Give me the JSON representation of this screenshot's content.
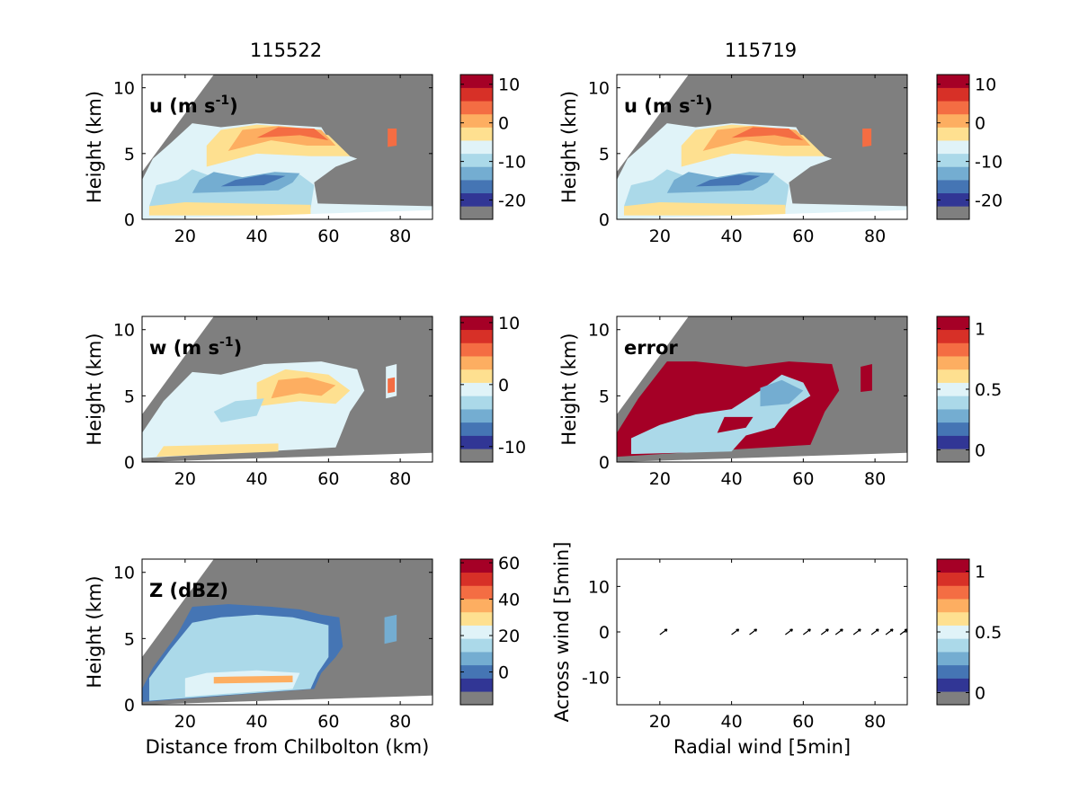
{
  "figure": {
    "column_titles": [
      "115522",
      "115719"
    ]
  },
  "colors": {
    "cmap": [
      "#7f7f7f",
      "#313695",
      "#4575b4",
      "#74add1",
      "#abd9e9",
      "#e0f3f8",
      "#fee090",
      "#fdae61",
      "#f46d43",
      "#d73027",
      "#a50026"
    ],
    "background": "#7f7f7f"
  },
  "chart_data": [
    {
      "type": "heatmap",
      "panel": "u-115522",
      "label_main": "u (m s",
      "label_sup": "-1",
      "label_end": ")",
      "xlabel": "",
      "ylabel": "Height (km)",
      "xlim": [
        8,
        89
      ],
      "ylim": [
        0,
        11
      ],
      "xticks": [
        "20",
        "40",
        "60",
        "80"
      ],
      "xtick_values": [
        20,
        40,
        60,
        80
      ],
      "yticks": [
        "0",
        "5",
        "10"
      ],
      "ytick_values": [
        0,
        5,
        10
      ],
      "colorbar": {
        "ticks": [
          "10",
          "0",
          "-10",
          "-20"
        ],
        "tick_values": [
          10,
          0,
          -10,
          -20
        ],
        "range": [
          -25,
          12.5
        ]
      }
    },
    {
      "type": "heatmap",
      "panel": "u-115719",
      "label_main": "u (m s",
      "label_sup": "-1",
      "label_end": ")",
      "xlabel": "",
      "ylabel": "Height (km)",
      "xlim": [
        8,
        89
      ],
      "ylim": [
        0,
        11
      ],
      "xticks": [
        "20",
        "40",
        "60",
        "80"
      ],
      "xtick_values": [
        20,
        40,
        60,
        80
      ],
      "yticks": [
        "0",
        "5",
        "10"
      ],
      "ytick_values": [
        0,
        5,
        10
      ],
      "colorbar": {
        "ticks": [
          "10",
          "0",
          "-10",
          "-20"
        ],
        "tick_values": [
          10,
          0,
          -10,
          -20
        ],
        "range": [
          -25,
          12.5
        ]
      }
    },
    {
      "type": "heatmap",
      "panel": "w-115522",
      "label_main": "w (m s",
      "label_sup": "-1",
      "label_end": ")",
      "xlabel": "",
      "ylabel": "Height (km)",
      "xlim": [
        8,
        89
      ],
      "ylim": [
        0,
        11
      ],
      "xticks": [
        "20",
        "40",
        "60",
        "80"
      ],
      "xtick_values": [
        20,
        40,
        60,
        80
      ],
      "yticks": [
        "0",
        "5",
        "10"
      ],
      "ytick_values": [
        0,
        5,
        10
      ],
      "colorbar": {
        "ticks": [
          "10",
          "0",
          "-10"
        ],
        "tick_values": [
          10,
          0,
          -10
        ],
        "range": [
          -12.5,
          11
        ]
      }
    },
    {
      "type": "heatmap",
      "panel": "error-115719",
      "label_main": "error",
      "label_sup": "",
      "label_end": "",
      "xlabel": "",
      "ylabel": "Height (km)",
      "xlim": [
        8,
        89
      ],
      "ylim": [
        0,
        11
      ],
      "xticks": [
        "20",
        "40",
        "60",
        "80"
      ],
      "xtick_values": [
        20,
        40,
        60,
        80
      ],
      "yticks": [
        "0",
        "5",
        "10"
      ],
      "ytick_values": [
        0,
        5,
        10
      ],
      "colorbar": {
        "ticks": [
          "1",
          "0.5",
          "0"
        ],
        "tick_values": [
          1,
          0.5,
          0
        ],
        "range": [
          -0.1,
          1.1
        ]
      }
    },
    {
      "type": "heatmap",
      "panel": "Z-115522",
      "label_main": "Z (dBZ)",
      "label_sup": "",
      "label_end": "",
      "xlabel": "Distance from Chilbolton (km)",
      "ylabel": "Height (km)",
      "xlim": [
        8,
        89
      ],
      "ylim": [
        0,
        11
      ],
      "xticks": [
        "20",
        "40",
        "60",
        "80"
      ],
      "xtick_values": [
        20,
        40,
        60,
        80
      ],
      "yticks": [
        "0",
        "5",
        "10"
      ],
      "ytick_values": [
        0,
        5,
        10
      ],
      "colorbar": {
        "ticks": [
          "60",
          "40",
          "20",
          "0"
        ],
        "tick_values": [
          60,
          40,
          20,
          0
        ],
        "range": [
          -18,
          62
        ]
      }
    },
    {
      "type": "scatter",
      "panel": "wind-vectors",
      "label_main": "",
      "label_sup": "",
      "label_end": "",
      "xlabel": "Radial wind [5min]",
      "ylabel": "Across wind [5min]",
      "xlim": [
        8,
        89
      ],
      "ylim": [
        -16,
        16
      ],
      "xticks": [
        "20",
        "40",
        "60",
        "80"
      ],
      "xtick_values": [
        20,
        40,
        60,
        80
      ],
      "yticks": [
        "-10",
        "0",
        "10"
      ],
      "ytick_values": [
        -10,
        0,
        10
      ],
      "x": [
        21,
        41,
        46,
        56,
        61,
        66,
        70,
        75,
        80,
        84,
        88
      ],
      "y": [
        0,
        0,
        0,
        0,
        0,
        0,
        0,
        0,
        0,
        0,
        0
      ],
      "colorbar": {
        "ticks": [
          "1",
          "0.5",
          "0"
        ],
        "tick_values": [
          1,
          0.5,
          0
        ],
        "range": [
          -0.1,
          1.1
        ]
      }
    }
  ]
}
